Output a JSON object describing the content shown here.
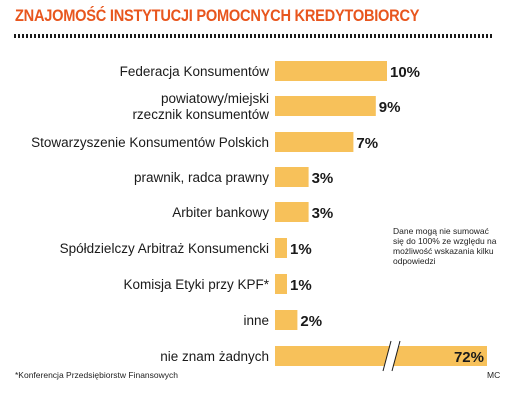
{
  "title": "ZNAJOMOŚĆ INSTYTUCJI POMOCNYCH KREDYTOBIORCY",
  "note": "Dane mogą nie sumować się do 100% ze względu na możliwość wskazania kilku odpowiedzi",
  "footnote": "*Konferencja Przedsiębiorstw Finansowych",
  "credit": "MC",
  "colors": {
    "title": "#e8561e",
    "bar": "#f7c15a",
    "text": "#1a1a1a"
  },
  "chart_data": {
    "type": "bar",
    "orientation": "horizontal",
    "categories": [
      [
        "Federacja Konsumentów"
      ],
      [
        "powiatowy/miejski",
        "rzecznik konsumentów"
      ],
      [
        "Stowarzyszenie Konsumentów Polskich"
      ],
      [
        "prawnik, radca prawny"
      ],
      [
        "Arbiter bankowy"
      ],
      [
        "Spółdzielczy Arbitraż Konsumencki"
      ],
      [
        "Komisja Etyki przy KPF*"
      ],
      [
        "inne"
      ],
      [
        "nie znam żadnych"
      ]
    ],
    "values": [
      10,
      9,
      7,
      3,
      3,
      1,
      1,
      2,
      72
    ],
    "value_labels": [
      "10%",
      "9%",
      "7%",
      "3%",
      "3%",
      "1%",
      "1%",
      "2%",
      "72%"
    ],
    "unit": "%",
    "axis_break_on": [
      "nie znam żadnych"
    ]
  }
}
